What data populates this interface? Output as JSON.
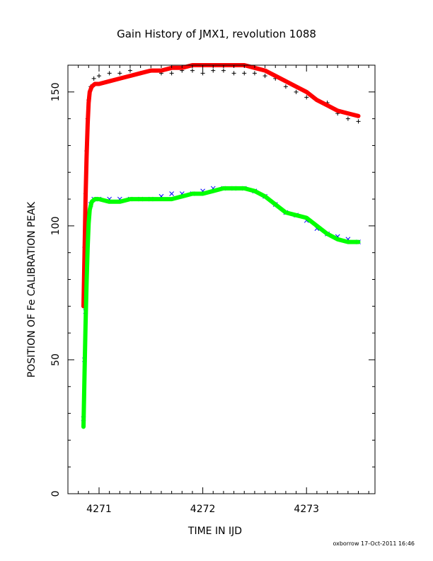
{
  "chart_data": {
    "type": "scatter",
    "title": "Gain History of JMX1, revolution 1088",
    "xlabel": "TIME IN IJD",
    "ylabel": "POSITION OF Fe CALIBRATION PEAK",
    "xlim": [
      4270.7,
      4273.66
    ],
    "ylim": [
      0,
      160
    ],
    "x_ticks": [
      "4271",
      "4272",
      "4273"
    ],
    "y_ticks": [
      "0",
      "50",
      "100",
      "150"
    ],
    "grid": false,
    "legend": "none",
    "footer": "oxborrow 17-Oct-2011 16:46",
    "series": [
      {
        "marker": "+",
        "color": "#000000",
        "x": [
          4270.85,
          4270.86,
          4270.87,
          4270.88,
          4270.89,
          4270.9,
          4270.92,
          4270.95,
          4271.0,
          4271.1,
          4271.2,
          4271.3,
          4271.4,
          4271.5,
          4271.6,
          4271.7,
          4271.8,
          4271.9,
          4272.0,
          4272.1,
          4272.2,
          4272.3,
          4272.4,
          4272.5,
          4272.6,
          4272.7,
          4272.8,
          4272.9,
          4273.0,
          4273.1,
          4273.2,
          4273.3,
          4273.4,
          4273.5
        ],
        "y": [
          70,
          92,
          112,
          128,
          140,
          147,
          152,
          155,
          156,
          157,
          157,
          158,
          157,
          158,
          157,
          157,
          158,
          158,
          157,
          158,
          158,
          157,
          157,
          157,
          156,
          155,
          152,
          150,
          148,
          147,
          146,
          142,
          140,
          139
        ]
      },
      {
        "marker": "x",
        "color": "#0000ff",
        "x": [
          4270.85,
          4270.86,
          4270.87,
          4270.88,
          4270.89,
          4270.9,
          4270.92,
          4270.95,
          4271.0,
          4271.1,
          4271.2,
          4271.3,
          4271.4,
          4271.5,
          4271.6,
          4271.7,
          4271.8,
          4271.9,
          4272.0,
          4272.1,
          4272.2,
          4272.3,
          4272.4,
          4272.5,
          4272.6,
          4272.7,
          4272.8,
          4272.9,
          4273.0,
          4273.1,
          4273.2,
          4273.3,
          4273.4,
          4273.5
        ],
        "y": [
          28,
          50,
          68,
          84,
          96,
          104,
          108,
          110,
          110,
          110,
          110,
          110,
          110,
          110,
          111,
          112,
          112,
          112,
          113,
          114,
          114,
          114,
          114,
          113,
          111,
          108,
          105,
          104,
          102,
          99,
          97,
          96,
          95,
          94
        ]
      },
      {
        "marker": "line",
        "color": "#ff0000",
        "x": [
          4270.85,
          4270.86,
          4270.87,
          4270.88,
          4270.89,
          4270.9,
          4270.91,
          4270.93,
          4270.96,
          4271.0,
          4271.1,
          4271.2,
          4271.3,
          4271.4,
          4271.5,
          4271.6,
          4271.7,
          4271.8,
          4271.9,
          4272.0,
          4272.1,
          4272.2,
          4272.3,
          4272.4,
          4272.5,
          4272.6,
          4272.7,
          4272.8,
          4272.9,
          4273.0,
          4273.1,
          4273.2,
          4273.3,
          4273.4,
          4273.5
        ],
        "y": [
          70,
          90,
          110,
          126,
          138,
          146,
          150,
          152,
          153,
          153,
          154,
          155,
          156,
          157,
          158,
          158,
          159,
          159,
          160,
          160,
          160,
          160,
          160,
          160,
          159,
          158,
          156,
          154,
          152,
          150,
          147,
          145,
          143,
          142,
          141
        ]
      },
      {
        "marker": "line",
        "color": "#00ff00",
        "x": [
          4270.85,
          4270.86,
          4270.87,
          4270.88,
          4270.89,
          4270.9,
          4270.91,
          4270.93,
          4270.96,
          4271.0,
          4271.1,
          4271.2,
          4271.3,
          4271.4,
          4271.5,
          4271.6,
          4271.7,
          4271.8,
          4271.9,
          4272.0,
          4272.1,
          4272.2,
          4272.3,
          4272.4,
          4272.5,
          4272.6,
          4272.7,
          4272.8,
          4272.9,
          4273.0,
          4273.1,
          4273.2,
          4273.3,
          4273.4,
          4273.5
        ],
        "y": [
          25,
          45,
          63,
          79,
          92,
          101,
          106,
          109,
          110,
          110,
          109,
          109,
          110,
          110,
          110,
          110,
          110,
          111,
          112,
          112,
          113,
          114,
          114,
          114,
          113,
          111,
          108,
          105,
          104,
          103,
          100,
          97,
          95,
          94,
          94
        ]
      }
    ]
  }
}
